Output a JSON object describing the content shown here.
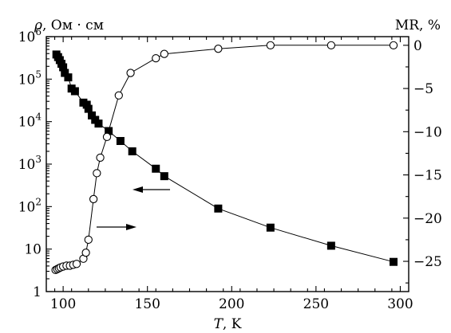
{
  "chart_data": {
    "type": "line",
    "xlabel_var": "T",
    "xlabel_unit": ", K",
    "ylabel_left_var": "ρ",
    "ylabel_left_unit": ", Ом · см",
    "ylabel_right": "MR, %",
    "xlim": [
      90,
      305
    ],
    "ylim_left": [
      1,
      1000000
    ],
    "ylim_right": [
      -28.5,
      1
    ],
    "yscale_left": "log",
    "grid": false,
    "x_ticks": [
      100,
      150,
      200,
      250,
      300
    ],
    "y_left_ticks": [
      {
        "value": 1,
        "base": "1",
        "exp": ""
      },
      {
        "value": 10,
        "base": "10",
        "exp": ""
      },
      {
        "value": 100,
        "base": "10",
        "exp": "2"
      },
      {
        "value": 1000,
        "base": "10",
        "exp": "3"
      },
      {
        "value": 10000,
        "base": "10",
        "exp": "4"
      },
      {
        "value": 100000,
        "base": "10",
        "exp": "5"
      },
      {
        "value": 1000000,
        "base": "10",
        "exp": "6"
      }
    ],
    "y_right_ticks": [
      {
        "value": 0,
        "label": "0"
      },
      {
        "value": -5,
        "label": "−5"
      },
      {
        "value": -10,
        "label": "−10"
      },
      {
        "value": -15,
        "label": "−15"
      },
      {
        "value": -20,
        "label": "−20"
      },
      {
        "value": -25,
        "label": "−25"
      }
    ],
    "series": [
      {
        "axis": "left",
        "marker": "filled-square",
        "color": "#000000",
        "points": [
          [
            96,
            380000
          ],
          [
            97,
            330000
          ],
          [
            98,
            280000
          ],
          [
            99,
            230000
          ],
          [
            100,
            190000
          ],
          [
            101,
            140000
          ],
          [
            103,
            110000
          ],
          [
            105,
            60000
          ],
          [
            107,
            52000
          ],
          [
            112,
            28000
          ],
          [
            114,
            25000
          ],
          [
            115,
            20000
          ],
          [
            117,
            14000
          ],
          [
            119,
            11000
          ],
          [
            121,
            9000
          ],
          [
            127,
            6000
          ],
          [
            134,
            3500
          ],
          [
            141,
            2000
          ],
          [
            155,
            780
          ],
          [
            160,
            520
          ],
          [
            192,
            90
          ],
          [
            223,
            32
          ],
          [
            259,
            12
          ],
          [
            296,
            5
          ]
        ]
      },
      {
        "axis": "right",
        "marker": "open-circle",
        "color": "#000000",
        "points": [
          [
            95.5,
            -26.0
          ],
          [
            96.5,
            -25.9
          ],
          [
            97.5,
            -25.8
          ],
          [
            98.5,
            -25.7
          ],
          [
            100,
            -25.6
          ],
          [
            102,
            -25.5
          ],
          [
            104,
            -25.5
          ],
          [
            106,
            -25.4
          ],
          [
            108,
            -25.3
          ],
          [
            112,
            -24.7
          ],
          [
            113.5,
            -24.0
          ],
          [
            115,
            -22.5
          ],
          [
            118,
            -17.8
          ],
          [
            120,
            -14.8
          ],
          [
            122,
            -13.0
          ],
          [
            126,
            -10.6
          ],
          [
            133,
            -5.8
          ],
          [
            140,
            -3.2
          ],
          [
            155,
            -1.5
          ],
          [
            160,
            -1.0
          ],
          [
            192,
            -0.4
          ],
          [
            223,
            0.0
          ],
          [
            259,
            0.0
          ],
          [
            296,
            0.0
          ]
        ]
      }
    ],
    "annotations": [
      {
        "kind": "arrow",
        "direction": "left",
        "points_to": "left-axis"
      },
      {
        "kind": "arrow",
        "direction": "right",
        "points_to": "right-axis"
      }
    ]
  }
}
